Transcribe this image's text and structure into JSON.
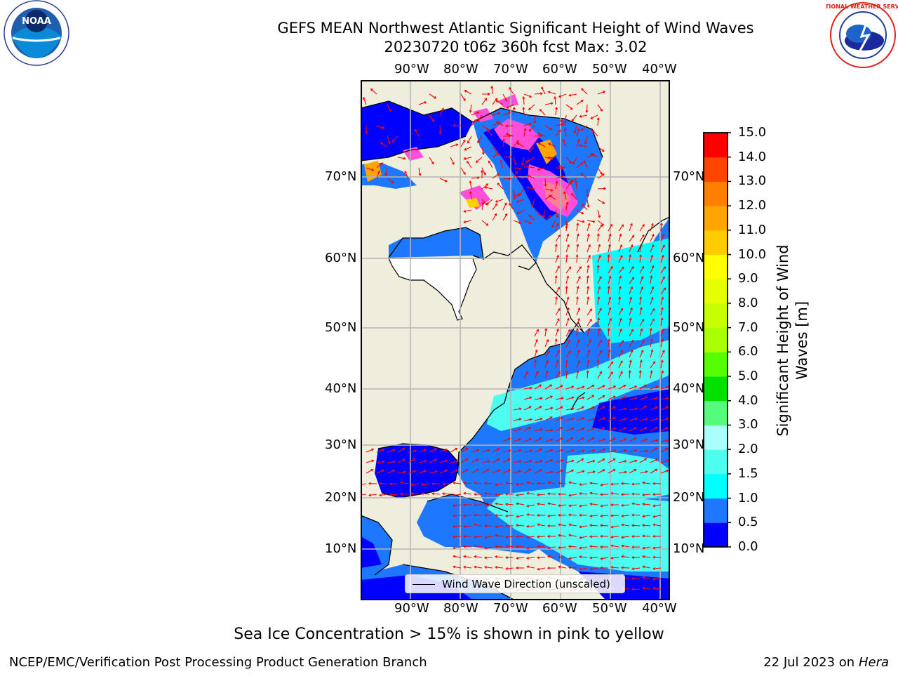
{
  "title_line1": "GEFS MEAN Northwest Atlantic Significant Height of Wind Waves",
  "title_line2": "20230720 t06z 360h fcst   Max: 3.02",
  "subtitle": "Sea Ice Concentration > 15% is shown in pink to yellow",
  "footer_left": "NCEP/EMC/Verification Post Processing Product Generation Branch",
  "footer_right_prefix": "22 Jul 2023 on ",
  "footer_right_host": "Hera",
  "logos": {
    "left": "NOAA",
    "right": "NATIONAL WEATHER SERVICE"
  },
  "lon_labels": [
    "90°W",
    "80°W",
    "70°W",
    "60°W",
    "50°W",
    "40°W"
  ],
  "lat_labels": [
    "70°N",
    "60°N",
    "50°N",
    "40°N",
    "30°N",
    "20°N",
    "10°N"
  ],
  "legend_text": "Wind Wave Direction (unscaled)",
  "colorbar": {
    "label": "Significant Height of Wind Waves [m]",
    "label_line1": "Significant Height of Wind",
    "label_line2": "Waves [m]",
    "ticks": [
      "0.0",
      "0.5",
      "1.0",
      "1.5",
      "2.0",
      "3.0",
      "4.0",
      "5.0",
      "6.0",
      "7.0",
      "8.0",
      "9.0",
      "10.0",
      "11.0",
      "12.0",
      "13.0",
      "14.0",
      "15.0"
    ],
    "colors": [
      "#0000ff",
      "#1e78ff",
      "#00ffff",
      "#4dfdf0",
      "#aaffff",
      "#55fb7d",
      "#00e100",
      "#55ff00",
      "#aaff00",
      "#c8ff00",
      "#e6ff00",
      "#ffff00",
      "#ffcc00",
      "#ffa500",
      "#ff7f00",
      "#ff4500",
      "#ff0000"
    ]
  },
  "colors": {
    "land": "#efeedc",
    "coastline": "#000000",
    "grid": "#b4b4b4",
    "arrows": "#ff0000",
    "ice_pink": "#ff4fd8"
  }
}
